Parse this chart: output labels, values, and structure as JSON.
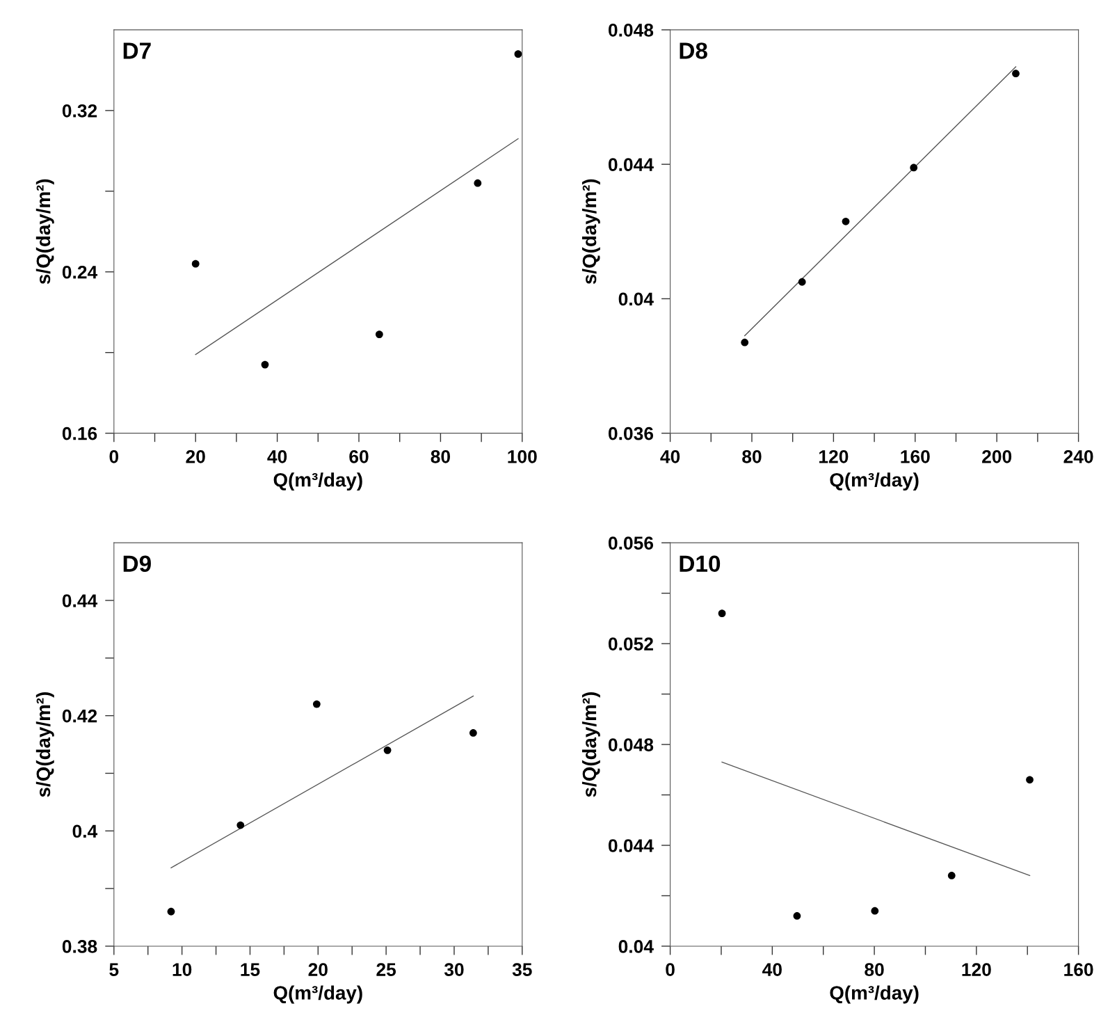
{
  "chart_data": [
    {
      "type": "scatter",
      "title": "D7",
      "xlabel": "Q(m³/day)",
      "ylabel": "s/Q(day/m²)",
      "xlim": [
        0,
        100
      ],
      "ylim": [
        0.16,
        0.36
      ],
      "xticks": [
        0,
        {
          "value": 10,
          "label": null
        },
        20,
        {
          "value": 30,
          "label": null
        },
        40,
        {
          "value": 50,
          "label": null
        },
        60,
        {
          "value": 70,
          "label": null
        },
        80,
        {
          "value": 90,
          "label": null
        },
        100
      ],
      "yticks": [
        0.16,
        {
          "value": 0.2,
          "label": null
        },
        0.24,
        {
          "value": 0.28,
          "label": null
        },
        0.32
      ],
      "series": [
        {
          "color": "#000000",
          "marker": "circle",
          "x": [
            20,
            37,
            65,
            89.1,
            99
          ],
          "values": [
            0.244,
            0.194,
            0.209,
            0.284,
            0.348
          ]
        },
        {
          "type": "line",
          "color": "#555555",
          "marker": "none",
          "x": [
            20,
            99
          ],
          "values": [
            0.199,
            0.306
          ]
        }
      ]
    },
    {
      "type": "scatter",
      "title": "D8",
      "xlabel": "Q(m³/day)",
      "ylabel": "s/Q(day/m²)",
      "xlim": [
        40,
        240
      ],
      "ylim": [
        0.036,
        0.048
      ],
      "xticks": [
        40,
        {
          "value": 60,
          "label": null
        },
        80,
        {
          "value": 100,
          "label": null
        },
        120,
        {
          "value": 140,
          "label": null
        },
        160,
        {
          "value": 180,
          "label": null
        },
        200,
        {
          "value": 220,
          "label": null
        },
        240
      ],
      "yticks": [
        0.036,
        0.04,
        0.044,
        0.048
      ],
      "series": [
        {
          "color": "#000000",
          "marker": "circle",
          "x": [
            76.5,
            104.6,
            126,
            159.3,
            209.3
          ],
          "values": [
            0.0387,
            0.0405,
            0.0423,
            0.0439,
            0.0467
          ]
        },
        {
          "type": "line",
          "color": "#555555",
          "marker": "none",
          "x": [
            76.5,
            209.3
          ],
          "values": [
            0.0389,
            0.0469
          ]
        }
      ]
    },
    {
      "type": "scatter",
      "title": "D9",
      "xlabel": "Q(m³/day)",
      "ylabel": "s/Q(day/m²)",
      "xlim": [
        5,
        35
      ],
      "ylim": [
        0.38,
        0.45
      ],
      "xticks": [
        5,
        {
          "value": 7.5,
          "label": null
        },
        10,
        {
          "value": 12.5,
          "label": null
        },
        15,
        {
          "value": 17.5,
          "label": null
        },
        20,
        {
          "value": 22.5,
          "label": null
        },
        25,
        {
          "value": 27.5,
          "label": null
        },
        30,
        {
          "value": 32.5,
          "label": null
        },
        35
      ],
      "yticks": [
        0.38,
        {
          "value": 0.39,
          "label": null
        },
        0.4,
        {
          "value": 0.41,
          "label": null
        },
        0.42,
        {
          "value": 0.43,
          "label": null
        },
        0.44
      ],
      "series": [
        {
          "color": "#000000",
          "marker": "circle",
          "x": [
            9.2,
            14.3,
            19.9,
            25.1,
            31.4
          ],
          "values": [
            0.386,
            0.401,
            0.422,
            0.414,
            0.417
          ]
        },
        {
          "type": "line",
          "color": "#555555",
          "marker": "none",
          "x": [
            9.2,
            31.4
          ],
          "values": [
            0.3936,
            0.4234
          ]
        }
      ]
    },
    {
      "type": "scatter",
      "title": "D10",
      "xlabel": "Q(m³/day)",
      "ylabel": "s/Q(day/m²)",
      "xlim": [
        0,
        160
      ],
      "ylim": [
        0.04,
        0.056
      ],
      "xticks": [
        0,
        {
          "value": 20,
          "label": null
        },
        40,
        {
          "value": 60,
          "label": null
        },
        80,
        {
          "value": 100,
          "label": null
        },
        120,
        {
          "value": 140,
          "label": null
        },
        160
      ],
      "yticks": [
        0.04,
        {
          "value": 0.042,
          "label": null
        },
        0.044,
        {
          "value": 0.046,
          "label": null
        },
        0.048,
        {
          "value": 0.05,
          "label": null
        },
        0.052,
        {
          "value": 0.054,
          "label": null
        },
        0.056
      ],
      "series": [
        {
          "color": "#000000",
          "marker": "circle",
          "x": [
            20.3,
            49.7,
            80.2,
            110.3,
            140.9
          ],
          "values": [
            0.0532,
            0.0412,
            0.0414,
            0.0428,
            0.0466
          ]
        },
        {
          "type": "line",
          "color": "#555555",
          "marker": "none",
          "x": [
            20.3,
            140.9
          ],
          "values": [
            0.0473,
            0.0428
          ]
        }
      ]
    }
  ]
}
